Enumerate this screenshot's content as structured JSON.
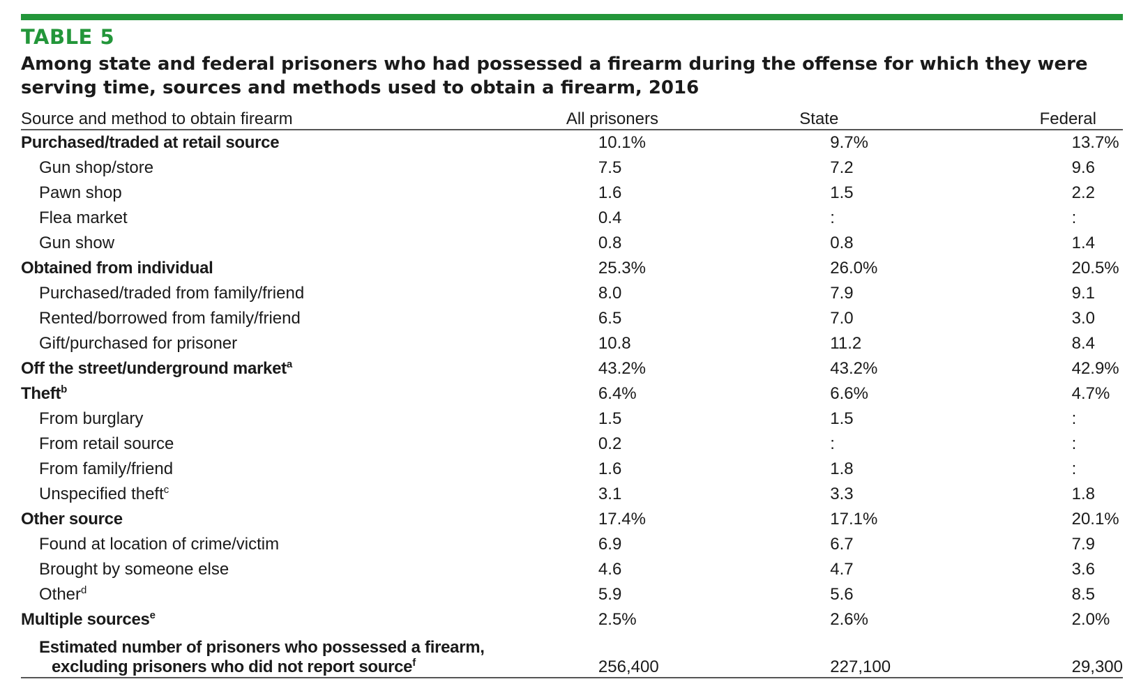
{
  "table": {
    "label": "TABLE 5",
    "title": "Among state and federal prisoners who had possessed a firearm during the offense for which they were serving time, sources and methods used to obtain a firearm, 2016",
    "headers": {
      "source": "Source and method to obtain firearm",
      "all": "All prisoners",
      "state": "State",
      "federal": "Federal"
    },
    "rows": [
      {
        "label": "Purchased/traded at retail source",
        "sup": "",
        "all": "10.1%",
        "state": "9.7%",
        "federal": "13.7%"
      },
      {
        "label": "Gun shop/store",
        "sup": "",
        "all": "7.5",
        "state": "7.2",
        "federal": "9.6"
      },
      {
        "label": "Pawn shop",
        "sup": "",
        "all": "1.6",
        "state": "1.5",
        "federal": "2.2"
      },
      {
        "label": "Flea market",
        "sup": "",
        "all": "0.4",
        "state": ":",
        "federal": ":"
      },
      {
        "label": "Gun show",
        "sup": "",
        "all": "0.8",
        "state": "0.8",
        "federal": "1.4"
      },
      {
        "label": "Obtained from individual",
        "sup": "",
        "all": "25.3%",
        "state": "26.0%",
        "federal": "20.5%"
      },
      {
        "label": "Purchased/traded from family/friend",
        "sup": "",
        "all": "8.0",
        "state": "7.9",
        "federal": "9.1"
      },
      {
        "label": "Rented/borrowed from family/friend",
        "sup": "",
        "all": "6.5",
        "state": "7.0",
        "federal": "3.0"
      },
      {
        "label": "Gift/purchased for prisoner",
        "sup": "",
        "all": "10.8",
        "state": "11.2",
        "federal": "8.4"
      },
      {
        "label": "Off the street/underground market",
        "sup": "a",
        "all": "43.2%",
        "state": "43.2%",
        "federal": "42.9%"
      },
      {
        "label": "Theft",
        "sup": "b",
        "all": "6.4%",
        "state": "6.6%",
        "federal": "4.7%"
      },
      {
        "label": "From burglary",
        "sup": "",
        "all": "1.5",
        "state": "1.5",
        "federal": ":"
      },
      {
        "label": "From retail source",
        "sup": "",
        "all": "0.2",
        "state": ":",
        "federal": ":"
      },
      {
        "label": "From family/friend",
        "sup": "",
        "all": "1.6",
        "state": "1.8",
        "federal": ":"
      },
      {
        "label": "Unspecified theft",
        "sup": "c",
        "all": "3.1",
        "state": "3.3",
        "federal": "1.8"
      },
      {
        "label": "Other source",
        "sup": "",
        "all": "17.4%",
        "state": "17.1%",
        "federal": "20.1%"
      },
      {
        "label": "Found at location of crime/victim",
        "sup": "",
        "all": "6.9",
        "state": "6.7",
        "federal": "7.9"
      },
      {
        "label": "Brought by someone else",
        "sup": "",
        "all": "4.6",
        "state": "4.7",
        "federal": "3.6"
      },
      {
        "label": "Other",
        "sup": "d",
        "all": "5.9",
        "state": "5.6",
        "federal": "8.5"
      },
      {
        "label": "Multiple sources",
        "sup": "e",
        "all": "2.5%",
        "state": "2.6%",
        "federal": "2.0%"
      }
    ],
    "total": {
      "label_line1": "Estimated number of prisoners who possessed a firearm,",
      "label_line2": "excluding prisoners who did not report source",
      "sup": "f",
      "all": "256,400",
      "state": "227,100",
      "federal": "29,300"
    }
  }
}
